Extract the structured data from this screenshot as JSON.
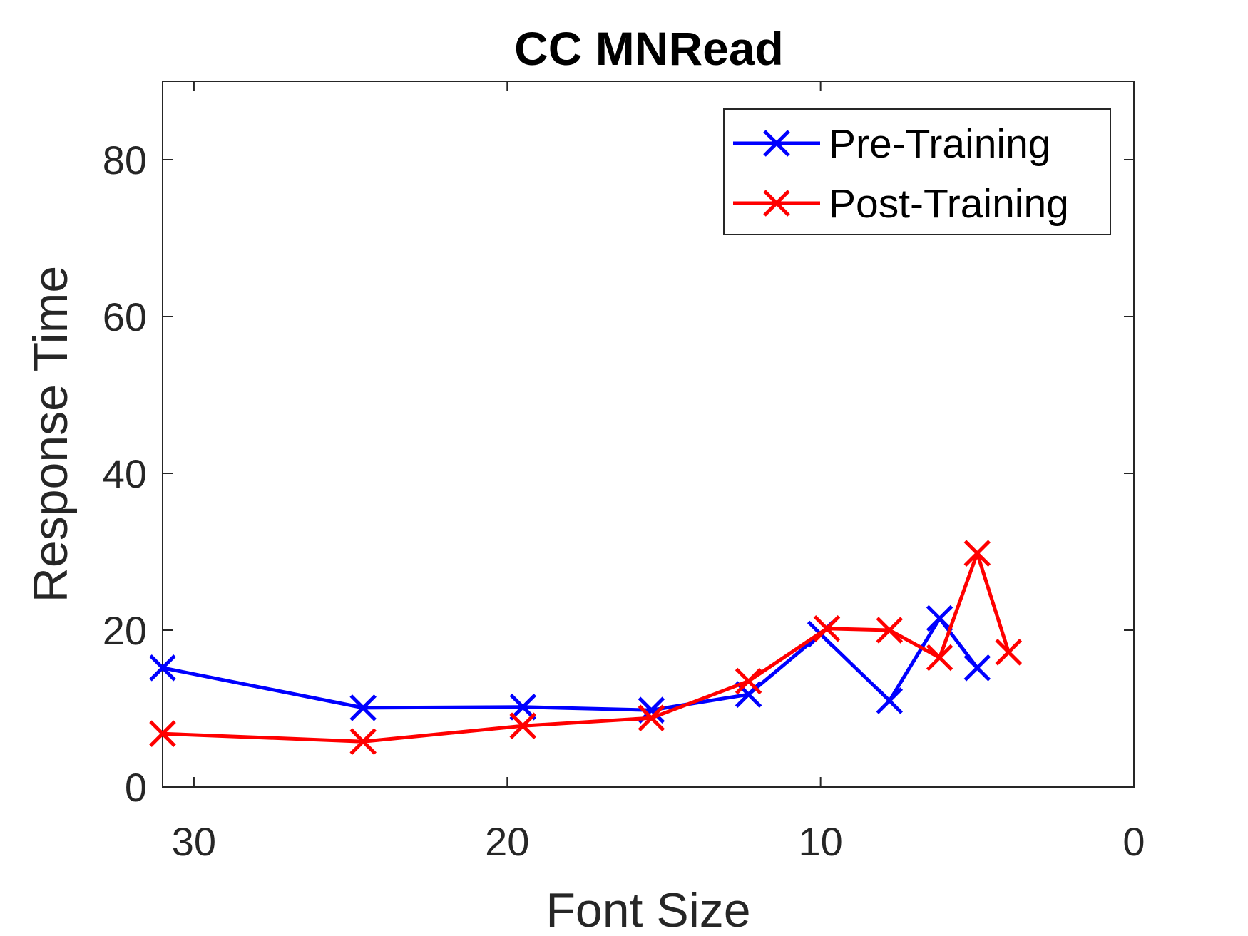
{
  "chart_data": {
    "type": "line",
    "title": "CC MNRead",
    "xlabel": "Font Size",
    "ylabel": "Response Time",
    "xlim": [
      31,
      0
    ],
    "ylim": [
      0,
      90
    ],
    "x_reversed": true,
    "xticks": [
      30,
      20,
      10,
      0
    ],
    "yticks": [
      0,
      20,
      40,
      60,
      80
    ],
    "grid": false,
    "legend_position": "top-right",
    "series": [
      {
        "name": "Pre-Training",
        "color": "#0000ff",
        "marker": "x",
        "points": [
          {
            "x": 31.0,
            "y": 15.2
          },
          {
            "x": 24.6,
            "y": 10.1
          },
          {
            "x": 19.5,
            "y": 10.2
          },
          {
            "x": 15.4,
            "y": 9.8
          },
          {
            "x": 12.3,
            "y": 11.8
          },
          {
            "x": 10.0,
            "y": 19.5
          },
          {
            "x": 7.8,
            "y": 11.0
          },
          {
            "x": 6.2,
            "y": 21.5
          },
          {
            "x": 5.0,
            "y": 15.2
          }
        ]
      },
      {
        "name": "Post-Training",
        "color": "#ff0000",
        "marker": "x",
        "points": [
          {
            "x": 31.0,
            "y": 6.8
          },
          {
            "x": 24.6,
            "y": 5.8
          },
          {
            "x": 19.5,
            "y": 7.8
          },
          {
            "x": 15.4,
            "y": 8.8
          },
          {
            "x": 12.3,
            "y": 13.5
          },
          {
            "x": 9.8,
            "y": 20.2
          },
          {
            "x": 7.8,
            "y": 20.0
          },
          {
            "x": 6.2,
            "y": 16.5
          },
          {
            "x": 5.0,
            "y": 29.8
          },
          {
            "x": 4.0,
            "y": 17.2
          }
        ]
      }
    ]
  }
}
